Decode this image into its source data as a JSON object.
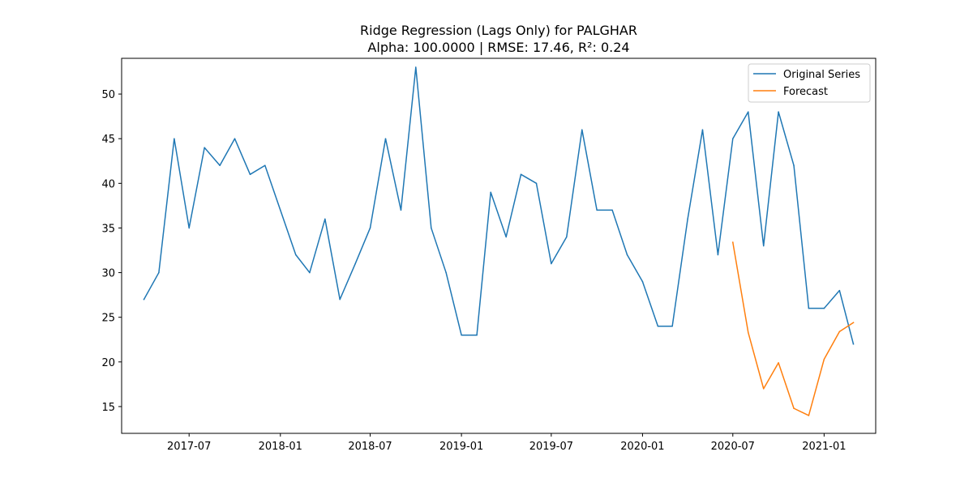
{
  "chart_data": {
    "type": "line",
    "title": "Ridge Regression (Lags Only) for PALGHAR",
    "subtitle": "Alpha: 100.0000 | RMSE: 17.46, R²: 0.24",
    "xlabel": "",
    "ylabel": "",
    "xlim": [
      "2017-02-15",
      "2021-04-15"
    ],
    "ylim": [
      12,
      54
    ],
    "x_ticks": [
      "2017-07",
      "2018-01",
      "2018-07",
      "2019-01",
      "2019-07",
      "2020-01",
      "2020-07",
      "2021-01"
    ],
    "y_ticks": [
      15,
      20,
      25,
      30,
      35,
      40,
      45,
      50
    ],
    "grid": false,
    "legend_position": "top-right",
    "series": [
      {
        "name": "Original Series",
        "color": "#1f77b4",
        "x": [
          "2017-04",
          "2017-05",
          "2017-06",
          "2017-07",
          "2017-08",
          "2017-09",
          "2017-10",
          "2017-11",
          "2017-12",
          "2018-01",
          "2018-02",
          "2018-03",
          "2018-04",
          "2018-05",
          "2018-06",
          "2018-07",
          "2018-08",
          "2018-09",
          "2018-10",
          "2018-11",
          "2018-12",
          "2019-01",
          "2019-02",
          "2019-03",
          "2019-04",
          "2019-05",
          "2019-06",
          "2019-07",
          "2019-08",
          "2019-09",
          "2019-10",
          "2019-11",
          "2019-12",
          "2020-01",
          "2020-02",
          "2020-03",
          "2020-04",
          "2020-05",
          "2020-06",
          "2020-07",
          "2020-08",
          "2020-09",
          "2020-10",
          "2020-11",
          "2020-12",
          "2021-01",
          "2021-02",
          "2021-03"
        ],
        "values": [
          27,
          30,
          45,
          35,
          44,
          42,
          45,
          41,
          42,
          37,
          32,
          30,
          36,
          27,
          31,
          35,
          45,
          37,
          53,
          35,
          30,
          23,
          23,
          39,
          34,
          41,
          40,
          31,
          34,
          46,
          37,
          37,
          32,
          29,
          24,
          24,
          36,
          46,
          32,
          45,
          48,
          33,
          48,
          42,
          26,
          26,
          28,
          22
        ]
      },
      {
        "name": "Forecast",
        "color": "#ff7f0e",
        "x": [
          "2020-07",
          "2020-08",
          "2020-09",
          "2020-10",
          "2020-11",
          "2020-12",
          "2021-01",
          "2021-02",
          "2021-03"
        ],
        "values": [
          33.4,
          23.3,
          17.0,
          19.9,
          14.8,
          14.0,
          20.3,
          23.4,
          24.4
        ]
      }
    ]
  }
}
